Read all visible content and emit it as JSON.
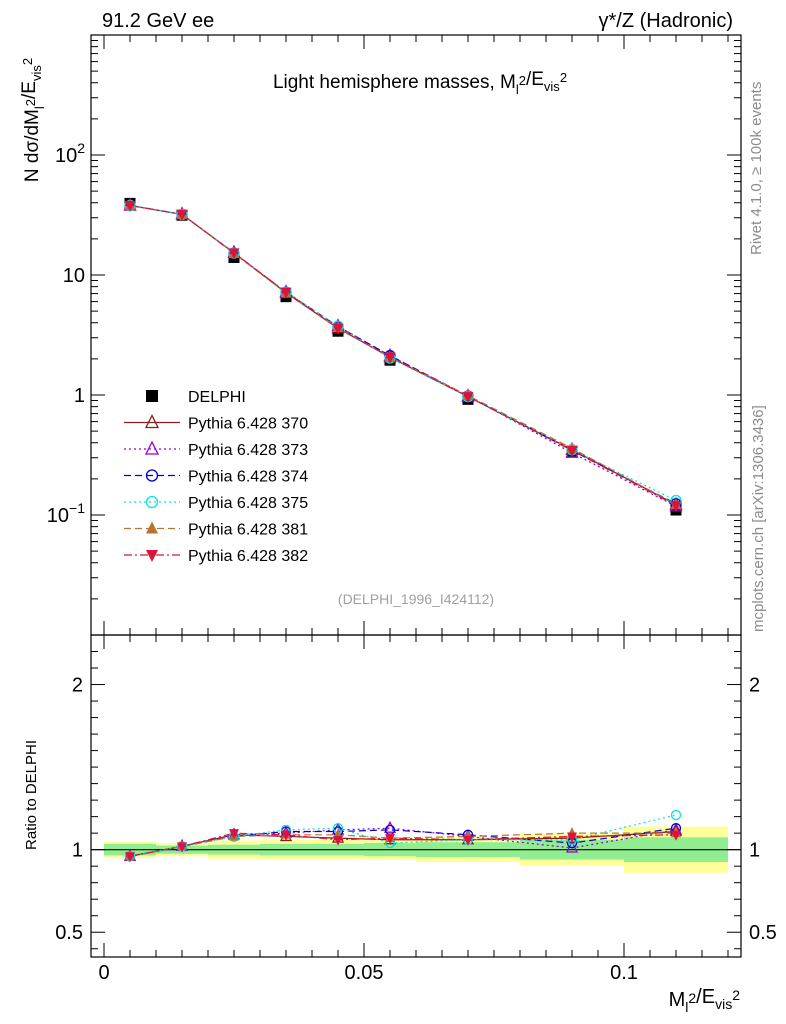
{
  "header": {
    "left": "91.2 GeV ee",
    "right": "γ*/Z (Hadronic)"
  },
  "side_labels": {
    "rivet": "Rivet 4.1.0, ≥ 100k events",
    "mcplots": "mcplots.cern.ch [arXiv:1306.3436]"
  },
  "colors": {
    "ratio_band_inner": "#90ee90",
    "ratio_band_outer": "#ffff99"
  },
  "chart_data": [
    {
      "type": "scatter",
      "panel": "main",
      "title": "Light hemisphere masses, M_l^2/E_vis^2",
      "ylabel": "N dσ/dM_l^2/E_vis^2",
      "yscale": "log",
      "ylim": [
        0.01,
        1000
      ],
      "xlim": [
        -0.0025,
        0.1225
      ],
      "y_ticks": [
        "10^2",
        "10",
        "1",
        "10^-1"
      ],
      "analysis_id": "(DELPHI_1996_I424112)",
      "x": [
        0.005,
        0.015,
        0.025,
        0.035,
        0.045,
        0.055,
        0.07,
        0.09,
        0.11
      ],
      "series": [
        {
          "name": "DELPHI",
          "color": "#000000",
          "marker": "square-filled",
          "line": "none",
          "values": [
            39.5,
            31.5,
            14.0,
            6.6,
            3.4,
            1.95,
            0.92,
            0.34,
            0.11
          ]
        },
        {
          "name": "Pythia 6.428 370",
          "color": "#8b1a1a",
          "marker": "triangle-up-open",
          "line": "solid",
          "values": [
            38.0,
            32.0,
            15.3,
            7.1,
            3.6,
            2.06,
            0.97,
            0.35,
            0.122
          ]
        },
        {
          "name": "Pythia 6.428 373",
          "color": "#9400d3",
          "marker": "triangle-up-open",
          "line": "dotted",
          "values": [
            38.0,
            32.0,
            15.3,
            7.2,
            3.75,
            2.12,
            0.98,
            0.33,
            0.118
          ]
        },
        {
          "name": "Pythia 6.428 374",
          "color": "#0000cd",
          "marker": "circle-open",
          "line": "dashed",
          "values": [
            38.0,
            32.0,
            15.2,
            7.2,
            3.72,
            2.13,
            0.98,
            0.345,
            0.124
          ]
        },
        {
          "name": "Pythia 6.428 375",
          "color": "#00e5e5",
          "marker": "circle-open",
          "line": "dotted",
          "values": [
            38.0,
            32.0,
            15.2,
            7.2,
            3.75,
            2.03,
            0.97,
            0.35,
            0.132
          ]
        },
        {
          "name": "Pythia 6.428 381",
          "color": "#b87333",
          "marker": "triangle-up-filled",
          "line": "dashed",
          "values": [
            38.0,
            32.0,
            15.1,
            7.1,
            3.65,
            2.07,
            0.99,
            0.36,
            0.122
          ]
        },
        {
          "name": "Pythia 6.428 382",
          "color": "#dc143c",
          "marker": "triangle-down-filled",
          "line": "dashdot",
          "values": [
            38.0,
            32.0,
            15.3,
            7.2,
            3.6,
            2.08,
            0.97,
            0.345,
            0.12
          ]
        }
      ]
    },
    {
      "type": "scatter",
      "panel": "ratio",
      "ylabel": "Ratio to DELPHI",
      "ylim": [
        0.35,
        2.3
      ],
      "y_ticks": [
        "0.5",
        "1",
        "2"
      ],
      "xlabel": "M_l^2/E_vis^2",
      "x_ticks": [
        "0",
        "0.05",
        "0.1"
      ],
      "bins": [
        [
          0,
          0.01
        ],
        [
          0.01,
          0.02
        ],
        [
          0.02,
          0.03
        ],
        [
          0.03,
          0.04
        ],
        [
          0.04,
          0.05
        ],
        [
          0.05,
          0.06
        ],
        [
          0.06,
          0.08
        ],
        [
          0.08,
          0.1
        ],
        [
          0.1,
          0.12
        ]
      ],
      "band_stat": [
        0.035,
        0.025,
        0.03,
        0.035,
        0.035,
        0.04,
        0.045,
        0.06,
        0.075
      ],
      "band_total": [
        0.05,
        0.04,
        0.055,
        0.06,
        0.06,
        0.06,
        0.075,
        0.095,
        0.14
      ],
      "x": [
        0.005,
        0.015,
        0.025,
        0.035,
        0.045,
        0.055,
        0.07,
        0.09,
        0.11
      ],
      "series": [
        {
          "name": "Pythia 6.428 370",
          "values": [
            0.96,
            1.02,
            1.09,
            1.08,
            1.07,
            1.06,
            1.06,
            1.07,
            1.11
          ]
        },
        {
          "name": "Pythia 6.428 373",
          "values": [
            0.96,
            1.02,
            1.09,
            1.1,
            1.12,
            1.13,
            1.08,
            1.01,
            1.12
          ]
        },
        {
          "name": "Pythia 6.428 374",
          "values": [
            0.96,
            1.02,
            1.08,
            1.11,
            1.11,
            1.12,
            1.09,
            1.04,
            1.13
          ]
        },
        {
          "name": "Pythia 6.428 375",
          "values": [
            0.96,
            1.02,
            1.08,
            1.12,
            1.13,
            1.04,
            1.06,
            1.06,
            1.21
          ]
        },
        {
          "name": "Pythia 6.428 381",
          "values": [
            0.96,
            1.02,
            1.08,
            1.09,
            1.09,
            1.07,
            1.08,
            1.1,
            1.1
          ]
        },
        {
          "name": "Pythia 6.428 382",
          "values": [
            0.96,
            1.02,
            1.1,
            1.09,
            1.06,
            1.07,
            1.06,
            1.08,
            1.09
          ]
        }
      ]
    }
  ]
}
